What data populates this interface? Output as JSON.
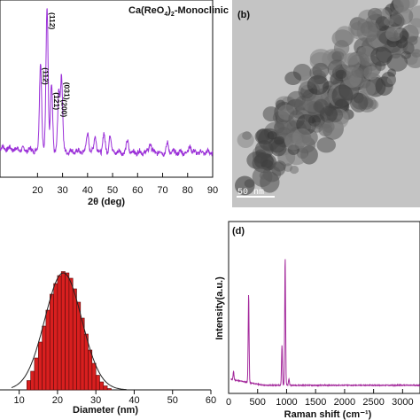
{
  "colors": {
    "xrd_line": "#9b30d8",
    "raman_line": "#a3289b",
    "bar_fill": "#d81f1f",
    "bar_edge": "#5a0a0a",
    "fit_line": "#222222",
    "tem_bg": "#c4c4c4"
  },
  "panel_a": {
    "chart_data": {
      "type": "line",
      "title": "Ca(ReO4)2-Monoclinic",
      "title_parts": {
        "pre": "Ca(ReO",
        "sub1": "4",
        "mid": ")",
        "sub2": "2",
        "post": "-Monoclinic"
      },
      "xlabel": "2θ (deg)",
      "xlim": [
        5,
        90
      ],
      "xticks": [
        "20",
        "30",
        "40",
        "50",
        "60",
        "70",
        "80",
        "90"
      ],
      "ylim": [
        0,
        100
      ],
      "peaks": [
        {
          "x": 21.2,
          "h": 62,
          "label": "(112)"
        },
        {
          "x": 23.8,
          "h": 100,
          "label": "(112)"
        },
        {
          "x": 25.6,
          "h": 45,
          "label": "(121)"
        },
        {
          "x": 28.5,
          "h": 40,
          "label": "(200)"
        },
        {
          "x": 29.6,
          "h": 52,
          "label": "(031)"
        },
        {
          "x": 40,
          "h": 14,
          "label": ""
        },
        {
          "x": 43,
          "h": 12,
          "label": ""
        },
        {
          "x": 46.5,
          "h": 13,
          "label": ""
        },
        {
          "x": 49,
          "h": 12,
          "label": ""
        },
        {
          "x": 56,
          "h": 8,
          "label": ""
        },
        {
          "x": 65,
          "h": 7,
          "label": ""
        },
        {
          "x": 72,
          "h": 6,
          "label": ""
        },
        {
          "x": 81,
          "h": 5,
          "label": ""
        }
      ]
    }
  },
  "panel_b": {
    "label": "(b)",
    "scale_bar": "50 nm"
  },
  "panel_c": {
    "chart_data": {
      "type": "bar",
      "xlabel": "Diameter (nm)",
      "xlim": [
        5,
        60
      ],
      "xticks": [
        "10",
        "20",
        "30",
        "40",
        "50",
        "60"
      ],
      "ylim": [
        0,
        100
      ],
      "bin_width": 1,
      "bin_start": 12,
      "values": [
        7,
        14,
        24,
        36,
        48,
        60,
        72,
        80,
        86,
        89,
        88,
        84,
        76,
        66,
        54,
        42,
        30,
        20,
        11,
        6,
        3,
        1
      ],
      "fit": {
        "type": "gaussian",
        "mean": 21.5,
        "sigma": 4.8,
        "peak": 88
      }
    }
  },
  "panel_d": {
    "label": "(d)",
    "chart_data": {
      "type": "line",
      "xlabel": "Raman shift (cm⁻¹)",
      "ylabel": "Intensity(a.u.)",
      "xlim": [
        0,
        3300
      ],
      "xticks": [
        "0",
        "500",
        "1000",
        "1500",
        "2000",
        "2500",
        "3000"
      ],
      "ylim": [
        0,
        100
      ],
      "peaks": [
        {
          "x": 85,
          "h": 5
        },
        {
          "x": 345,
          "h": 55
        },
        {
          "x": 920,
          "h": 25
        },
        {
          "x": 975,
          "h": 80
        },
        {
          "x": 1040,
          "h": 4
        }
      ]
    }
  }
}
